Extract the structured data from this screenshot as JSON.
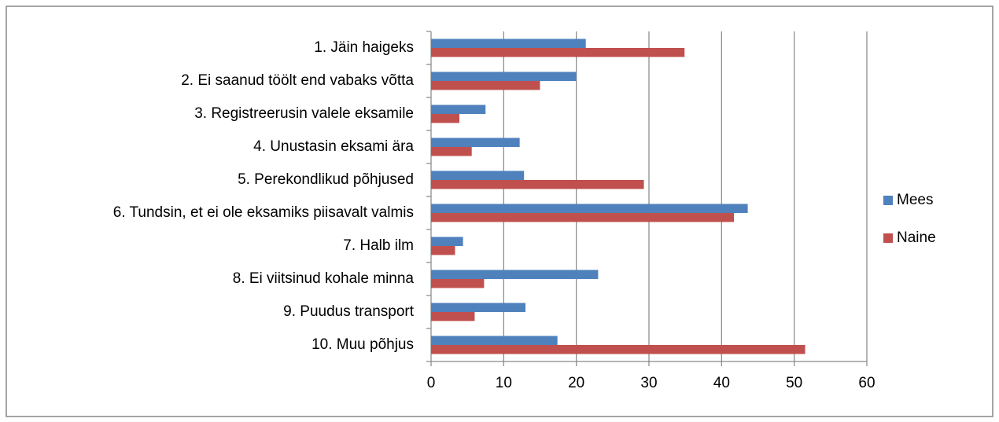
{
  "chart_data": {
    "type": "bar",
    "orientation": "horizontal",
    "categories": [
      "1. Jäin haigeks",
      "2. Ei saanud töölt end vabaks võtta",
      "3. Registreerusin valele eksamile",
      "4. Unustasin eksami ära",
      "5. Perekondlikud põhjused",
      "6. Tundsin, et ei ole eksamiks piisavalt valmis",
      "7. Halb ilm",
      "8. Ei viitsinud kohale minna",
      "9. Puudus transport",
      "10. Muu põhjus"
    ],
    "series": [
      {
        "name": "Mees",
        "color": "#4f81bd",
        "values": [
          21.3,
          20,
          7.5,
          12.2,
          12.8,
          43.6,
          4.4,
          23,
          13,
          17.4
        ]
      },
      {
        "name": "Naine",
        "color": "#c0504d",
        "values": [
          34.9,
          15,
          3.9,
          5.6,
          29.3,
          41.7,
          3.3,
          7.3,
          6,
          51.5
        ]
      }
    ],
    "xlim": [
      0,
      60
    ],
    "xticks": [
      0,
      10,
      20,
      30,
      40,
      50,
      60
    ],
    "grid": true,
    "legend": "right"
  }
}
